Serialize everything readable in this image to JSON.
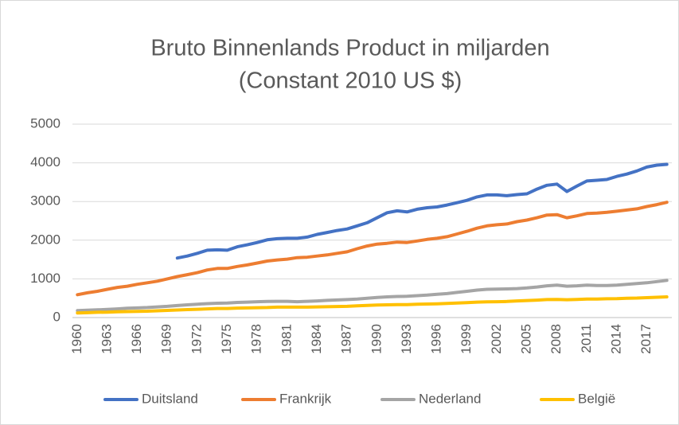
{
  "chart_data": {
    "type": "line",
    "title": "Bruto Binnenlands Product in miljarden",
    "subtitle": "(Constant 2010 US $)",
    "x": [
      1960,
      1961,
      1962,
      1963,
      1964,
      1965,
      1966,
      1967,
      1968,
      1969,
      1970,
      1971,
      1972,
      1973,
      1974,
      1975,
      1976,
      1977,
      1978,
      1979,
      1980,
      1981,
      1982,
      1983,
      1984,
      1985,
      1986,
      1987,
      1988,
      1989,
      1990,
      1991,
      1992,
      1993,
      1994,
      1995,
      1996,
      1997,
      1998,
      1999,
      2000,
      2001,
      2002,
      2003,
      2004,
      2005,
      2006,
      2007,
      2008,
      2009,
      2010,
      2011,
      2012,
      2013,
      2014,
      2015,
      2016,
      2017,
      2018,
      2019
    ],
    "series": [
      {
        "name": "Duitsland",
        "color": "#4472c4",
        "values": [
          null,
          null,
          null,
          null,
          null,
          null,
          null,
          null,
          null,
          null,
          1540,
          1590,
          1660,
          1740,
          1750,
          1740,
          1830,
          1880,
          1940,
          2010,
          2040,
          2050,
          2050,
          2080,
          2150,
          2200,
          2250,
          2290,
          2370,
          2450,
          2580,
          2710,
          2760,
          2730,
          2800,
          2840,
          2860,
          2910,
          2970,
          3030,
          3120,
          3170,
          3170,
          3150,
          3180,
          3200,
          3320,
          3420,
          3450,
          3260,
          3400,
          3530,
          3550,
          3570,
          3650,
          3710,
          3790,
          3890,
          3940,
          3960
        ]
      },
      {
        "name": "Frankrijk",
        "color": "#ed7d31",
        "values": [
          590,
          640,
          680,
          730,
          780,
          810,
          860,
          900,
          940,
          1000,
          1060,
          1110,
          1160,
          1230,
          1270,
          1270,
          1320,
          1360,
          1410,
          1460,
          1490,
          1510,
          1550,
          1560,
          1590,
          1620,
          1660,
          1700,
          1780,
          1850,
          1900,
          1920,
          1950,
          1940,
          1980,
          2020,
          2050,
          2090,
          2160,
          2230,
          2310,
          2370,
          2400,
          2420,
          2480,
          2520,
          2580,
          2650,
          2660,
          2580,
          2630,
          2690,
          2700,
          2720,
          2750,
          2780,
          2810,
          2870,
          2920,
          2980
        ]
      },
      {
        "name": "Nederland",
        "color": "#a5a5a5",
        "values": [
          180,
          190,
          200,
          210,
          225,
          240,
          250,
          260,
          275,
          290,
          310,
          330,
          345,
          360,
          370,
          375,
          390,
          400,
          410,
          415,
          420,
          420,
          410,
          420,
          430,
          445,
          455,
          465,
          480,
          500,
          520,
          535,
          545,
          550,
          565,
          580,
          600,
          620,
          650,
          680,
          710,
          730,
          735,
          740,
          750,
          765,
          790,
          820,
          840,
          810,
          820,
          840,
          830,
          830,
          840,
          860,
          880,
          900,
          930,
          960
        ]
      },
      {
        "name": "België",
        "color": "#ffc000",
        "values": [
          120,
          125,
          135,
          140,
          150,
          155,
          160,
          165,
          175,
          185,
          195,
          205,
          215,
          225,
          235,
          235,
          245,
          250,
          255,
          260,
          270,
          270,
          270,
          270,
          275,
          280,
          285,
          290,
          305,
          315,
          325,
          330,
          335,
          335,
          345,
          350,
          355,
          365,
          375,
          385,
          400,
          405,
          410,
          415,
          430,
          440,
          450,
          465,
          470,
          460,
          470,
          480,
          480,
          485,
          490,
          500,
          505,
          515,
          525,
          535
        ]
      }
    ],
    "xlim": [
      1959.5,
      2019.5
    ],
    "xticks": [
      1960,
      1963,
      1966,
      1969,
      1972,
      1975,
      1978,
      1981,
      1984,
      1987,
      1990,
      1993,
      1996,
      1999,
      2002,
      2005,
      2008,
      2011,
      2014,
      2017
    ],
    "ylim": [
      0,
      5000
    ],
    "yticks": [
      0,
      1000,
      2000,
      3000,
      4000,
      5000
    ],
    "grid": true,
    "legend": "bottom"
  }
}
